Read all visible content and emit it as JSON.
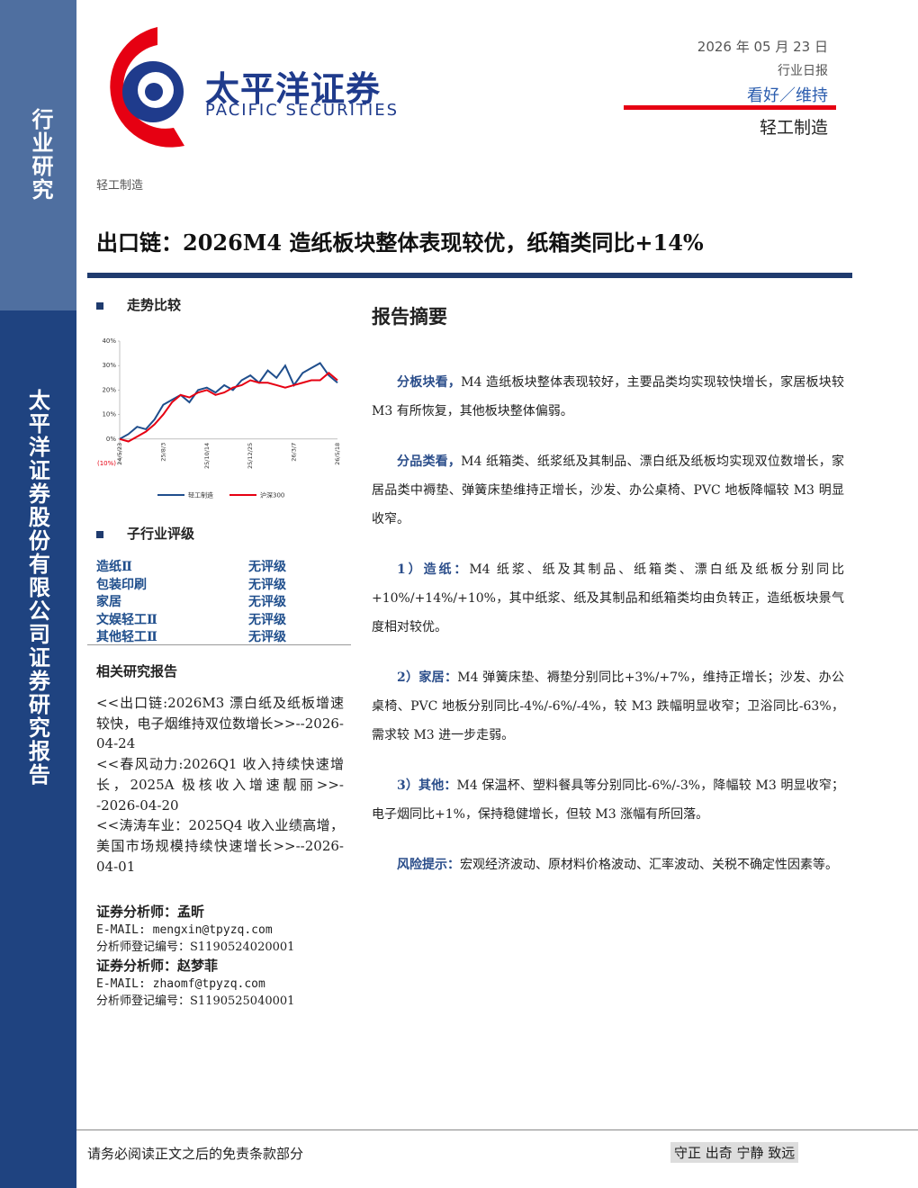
{
  "sidebar": {
    "top": "行业研究",
    "bottom": "太平洋证券股份有限公司证券研究报告"
  },
  "header": {
    "logo_cn": "太平洋证券",
    "logo_en": "PACIFIC SECURITIES",
    "date": "2026 年 05 月 23 日",
    "report_type": "行业日报",
    "rating": "看好／维持",
    "industry": "轻工制造"
  },
  "breadcrumb": "轻工制造",
  "title": "出口链：2026M4 造纸板块整体表现较优，纸箱类同比+14%",
  "trend": {
    "heading": "走势比较",
    "chart_data": {
      "type": "line",
      "categories": [
        "24/5/23",
        null,
        null,
        null,
        null,
        "25/8/3",
        null,
        null,
        null,
        null,
        "25/10/14",
        null,
        null,
        null,
        null,
        "25/12/25",
        null,
        null,
        null,
        null,
        "26/3/7",
        null,
        null,
        null,
        null,
        "26/5/18"
      ],
      "series": [
        {
          "name": "轻工制造",
          "color": "#1f4e8c",
          "values": [
            0,
            2,
            5,
            4,
            8,
            14,
            16,
            18,
            15,
            20,
            21,
            19,
            22,
            20,
            24,
            26,
            23,
            28,
            25,
            30,
            22,
            27,
            29,
            31,
            26,
            23
          ]
        },
        {
          "name": "沪深300",
          "color": "#e60012",
          "values": [
            0,
            -1,
            1,
            3,
            6,
            10,
            15,
            18,
            17,
            19,
            20,
            18,
            19,
            21,
            22,
            24,
            23,
            23,
            22,
            21,
            22,
            23,
            24,
            24,
            27,
            24
          ]
        }
      ],
      "ylim": [
        -10,
        40
      ],
      "yticks": [
        {
          "value": -10,
          "label": "(10%)"
        },
        {
          "value": 0,
          "label": "0%"
        },
        {
          "value": 10,
          "label": "10%"
        },
        {
          "value": 20,
          "label": "20%"
        },
        {
          "value": 30,
          "label": "30%"
        },
        {
          "value": 40,
          "label": "40%"
        }
      ]
    }
  },
  "sub_ratings": {
    "heading": "子行业评级",
    "rows": [
      [
        "造纸Ⅱ",
        "无评级"
      ],
      [
        "包装印刷",
        "无评级"
      ],
      [
        "家居",
        "无评级"
      ],
      [
        "文娱轻工Ⅱ",
        "无评级"
      ],
      [
        "其他轻工Ⅱ",
        "无评级"
      ]
    ]
  },
  "related": {
    "heading": "相关研究报告",
    "items": [
      "<<出口链:2026M3 漂白纸及纸板增速较快，电子烟维持双位数增长>>--2026-04-24",
      "<<春风动力:2026Q1 收入持续快速增长，2025A 极核收入增速靓丽>>--2026-04-20",
      "<<涛涛车业：2025Q4 收入业绩高增，美国市场规模持续快速增长>>--2026-04-01"
    ]
  },
  "analysts": [
    {
      "title": "证券分析师：孟昕",
      "email": "E-MAIL: mengxin@tpyzq.com",
      "license": "分析师登记编号：S1190524020001"
    },
    {
      "title": "证券分析师：赵梦菲",
      "email": "E-MAIL: zhaomf@tpyzq.com",
      "license": "分析师登记编号：S1190525040001"
    }
  ],
  "summary": {
    "heading": "报告摘要",
    "paragraphs": [
      {
        "lead": "分板块看，",
        "text": "M4 造纸板块整体表现较好，主要品类均实现较快增长，家居板块较 M3 有所恢复，其他板块整体偏弱。"
      },
      {
        "lead": "分品类看，",
        "text": "M4 纸箱类、纸浆纸及其制品、漂白纸及纸板均实现双位数增长，家居品类中褥垫、弹簧床垫维持正增长，沙发、办公桌椅、PVC 地板降幅较 M3 明显收窄。"
      },
      {
        "lead": "1）造纸：",
        "text": "M4 纸浆、纸及其制品、纸箱类、漂白纸及纸板分别同比+10%/+14%/+10%，其中纸浆、纸及其制品和纸箱类均由负转正，造纸板块景气度相对较优。"
      },
      {
        "lead": "2）家居：",
        "text": "M4 弹簧床垫、褥垫分别同比+3%/+7%，维持正增长；沙发、办公桌椅、PVC 地板分别同比-4%/-6%/-4%，较 M3 跌幅明显收窄；卫浴同比-63%，需求较 M3 进一步走弱。"
      },
      {
        "lead": "3）其他：",
        "text": "M4 保温杯、塑料餐具等分别同比-6%/-3%，降幅较 M3 明显收窄；电子烟同比+1%，保持稳健增长，但较 M3 涨幅有所回落。"
      },
      {
        "lead": "风险提示：",
        "text": "宏观经济波动、原材料价格波动、汇率波动、关税不确定性因素等。"
      }
    ]
  },
  "footer": {
    "disclaimer": "请务必阅读正文之后的免责条款部分",
    "motto": "守正 出奇 宁静 致远"
  }
}
